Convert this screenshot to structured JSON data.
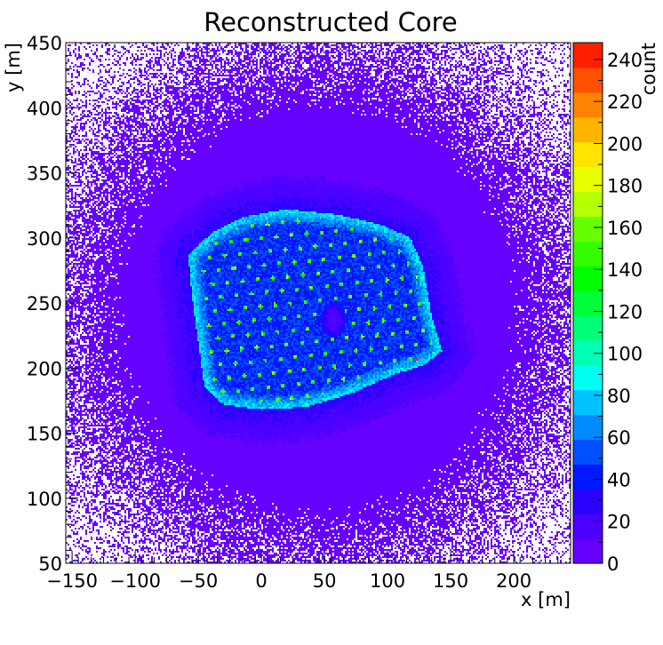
{
  "chart_data": {
    "type": "heatmap",
    "title": "Reconstructed Core",
    "xlabel": "x [m]",
    "ylabel": "y [m]",
    "zlabel": "count",
    "xlim": [
      -155,
      245
    ],
    "ylim": [
      50,
      450
    ],
    "zlim": [
      0,
      248
    ],
    "x_ticks": [
      -150,
      -100,
      -50,
      0,
      50,
      100,
      150,
      200
    ],
    "y_ticks": [
      50,
      100,
      150,
      200,
      250,
      300,
      350,
      400,
      450
    ],
    "z_ticks": [
      0,
      20,
      40,
      60,
      80,
      100,
      120,
      140,
      160,
      180,
      200,
      220,
      240
    ],
    "colorbar_colors": [
      "#6600ff",
      "#4c00ff",
      "#2a00ff",
      "#0019ff",
      "#0050ff",
      "#008aff",
      "#00c2ff",
      "#00fff2",
      "#00ffb4",
      "#00ff77",
      "#00ff36",
      "#00ff00",
      "#33ff00",
      "#66ff00",
      "#b4ff00",
      "#e9ff00",
      "#ffe400",
      "#ffb400",
      "#ff8200",
      "#ff5000",
      "#ff1e00"
    ],
    "empty_bins_color": "#ffffff",
    "features": {
      "array_polygon": [
        [
          -58,
          287
        ],
        [
          -38,
          305
        ],
        [
          -15,
          316
        ],
        [
          20,
          322
        ],
        [
          60,
          318
        ],
        [
          95,
          310
        ],
        [
          118,
          300
        ],
        [
          128,
          278
        ],
        [
          135,
          240
        ],
        [
          143,
          213
        ],
        [
          130,
          203
        ],
        [
          105,
          195
        ],
        [
          70,
          180
        ],
        [
          35,
          170
        ],
        [
          0,
          168
        ],
        [
          -30,
          172
        ],
        [
          -45,
          185
        ],
        [
          -50,
          220
        ],
        [
          -55,
          255
        ]
      ],
      "hole_center": [
        57,
        237
      ],
      "hole_radius": [
        10,
        14
      ],
      "hot_spot": [
        123,
        207
      ],
      "hot_spot_value": 245,
      "background_level": 5,
      "array_level": 45,
      "rim_level": 95,
      "station_level": 130,
      "station_spacing": 12
    }
  }
}
